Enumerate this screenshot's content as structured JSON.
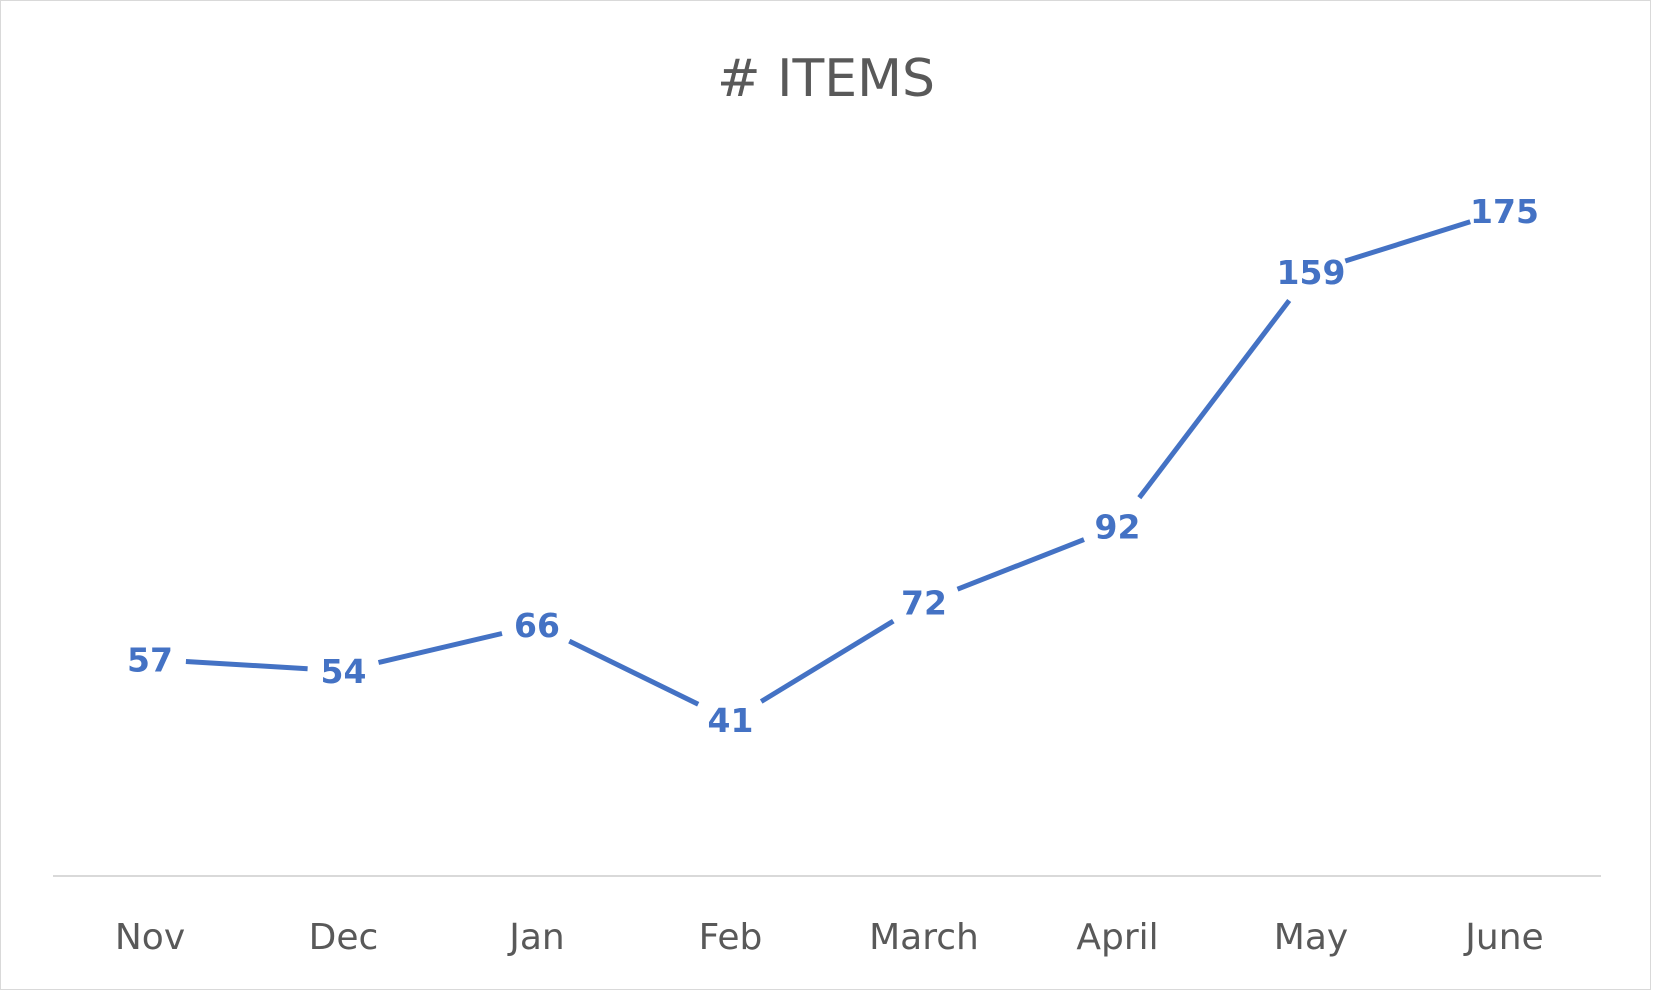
{
  "chart_data": {
    "type": "line",
    "title": "# ITEMS",
    "categories": [
      "Nov",
      "Dec",
      "Jan",
      "Feb",
      "March",
      "April",
      "May",
      "June"
    ],
    "series": [
      {
        "values": [
          57,
          54,
          66,
          41,
          72,
          92,
          159,
          175
        ],
        "color": "#4472c4"
      }
    ],
    "xlabel": "",
    "ylabel": "",
    "ylim": [
      0,
      200
    ],
    "grid": false,
    "legend": "none",
    "data_labels": true
  }
}
